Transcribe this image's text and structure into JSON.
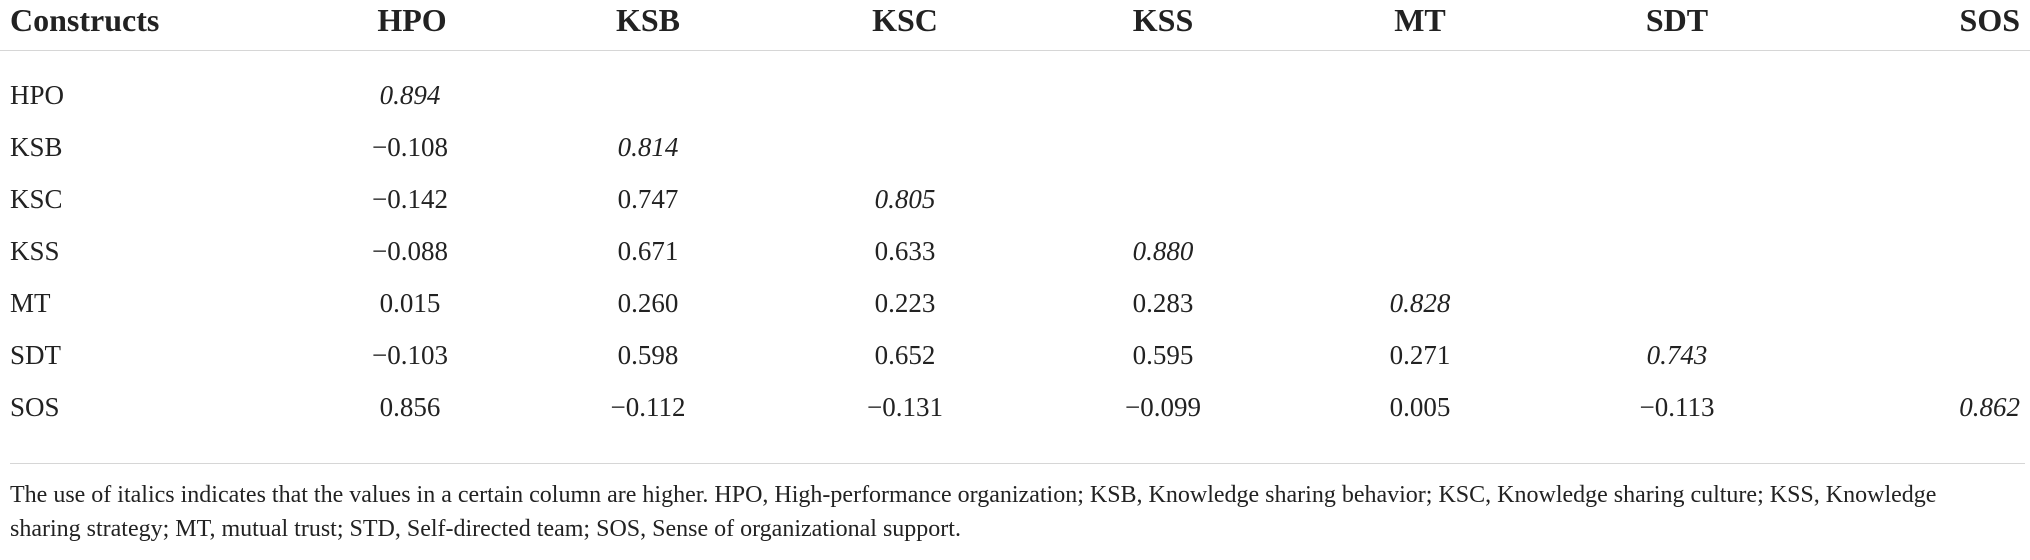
{
  "table": {
    "headers": [
      "Constructs",
      "HPO",
      "KSB",
      "KSC",
      "KSS",
      "MT",
      "SDT",
      "SOS"
    ],
    "rows": [
      {
        "label": "HPO",
        "values": [
          "0.894",
          "",
          "",
          "",
          "",
          "",
          ""
        ]
      },
      {
        "label": "KSB",
        "values": [
          "−0.108",
          "0.814",
          "",
          "",
          "",
          "",
          ""
        ]
      },
      {
        "label": "KSC",
        "values": [
          "−0.142",
          "0.747",
          "0.805",
          "",
          "",
          "",
          ""
        ]
      },
      {
        "label": "KSS",
        "values": [
          "−0.088",
          "0.671",
          "0.633",
          "0.880",
          "",
          "",
          ""
        ]
      },
      {
        "label": "MT",
        "values": [
          "0.015",
          "0.260",
          "0.223",
          "0.283",
          "0.828",
          "",
          ""
        ]
      },
      {
        "label": "SDT",
        "values": [
          "−0.103",
          "0.598",
          "0.652",
          "0.595",
          "0.271",
          "0.743",
          ""
        ]
      },
      {
        "label": "SOS",
        "values": [
          "0.856",
          "−0.112",
          "−0.131",
          "−0.099",
          "0.005",
          "−0.113",
          "0.862"
        ]
      }
    ]
  },
  "note": "The use of italics indicates that the values in a certain column are higher. HPO, High-performance organization; KSB, Knowledge sharing behavior; KSC, Knowledge sharing culture; KSS, Knowledge sharing strategy; MT, mutual trust; STD, Self-directed team; SOS, Sense of organizational support."
}
